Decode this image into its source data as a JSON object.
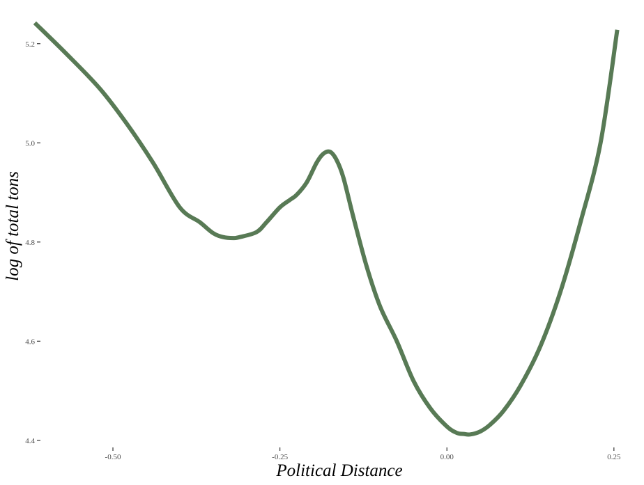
{
  "chart_data": {
    "type": "line",
    "title": "",
    "xlabel": "Political Distance",
    "ylabel": "log of total tons",
    "xlim": [
      -0.62,
      0.27
    ],
    "ylim": [
      4.39,
      5.26
    ],
    "grid": false,
    "legend": "none",
    "line_color": "#587a55",
    "x_ticks": [
      {
        "value": -0.5,
        "label": "-0.50"
      },
      {
        "value": -0.25,
        "label": "-0.25"
      },
      {
        "value": 0.0,
        "label": "0.00"
      },
      {
        "value": 0.25,
        "label": "0.25"
      }
    ],
    "y_ticks": [
      {
        "value": 4.4,
        "label": "4.4"
      },
      {
        "value": 4.6,
        "label": "4.6"
      },
      {
        "value": 4.8,
        "label": "4.8"
      },
      {
        "value": 5.0,
        "label": "5.0"
      },
      {
        "value": 5.2,
        "label": "5.2"
      }
    ],
    "series": [
      {
        "x": [
          -0.617,
          -0.57,
          -0.52,
          -0.48,
          -0.44,
          -0.4,
          -0.37,
          -0.35,
          -0.335,
          -0.32,
          -0.31,
          -0.285,
          -0.27,
          -0.25,
          -0.235,
          -0.225,
          -0.21,
          -0.195,
          -0.185,
          -0.175,
          -0.165,
          -0.155,
          -0.14,
          -0.12,
          -0.1,
          -0.075,
          -0.05,
          -0.025,
          0.0,
          0.015,
          0.025,
          0.035,
          0.05,
          0.065,
          0.085,
          0.11,
          0.14,
          0.17,
          0.2,
          0.23,
          0.255
        ],
        "y": [
          5.242,
          5.18,
          5.11,
          5.04,
          4.96,
          4.87,
          4.84,
          4.818,
          4.81,
          4.808,
          4.81,
          4.82,
          4.84,
          4.87,
          4.885,
          4.895,
          4.92,
          4.96,
          4.978,
          4.982,
          4.965,
          4.93,
          4.85,
          4.75,
          4.67,
          4.6,
          4.52,
          4.465,
          4.428,
          4.415,
          4.413,
          4.412,
          4.418,
          4.432,
          4.46,
          4.51,
          4.59,
          4.7,
          4.84,
          5.0,
          5.228
        ]
      }
    ]
  }
}
